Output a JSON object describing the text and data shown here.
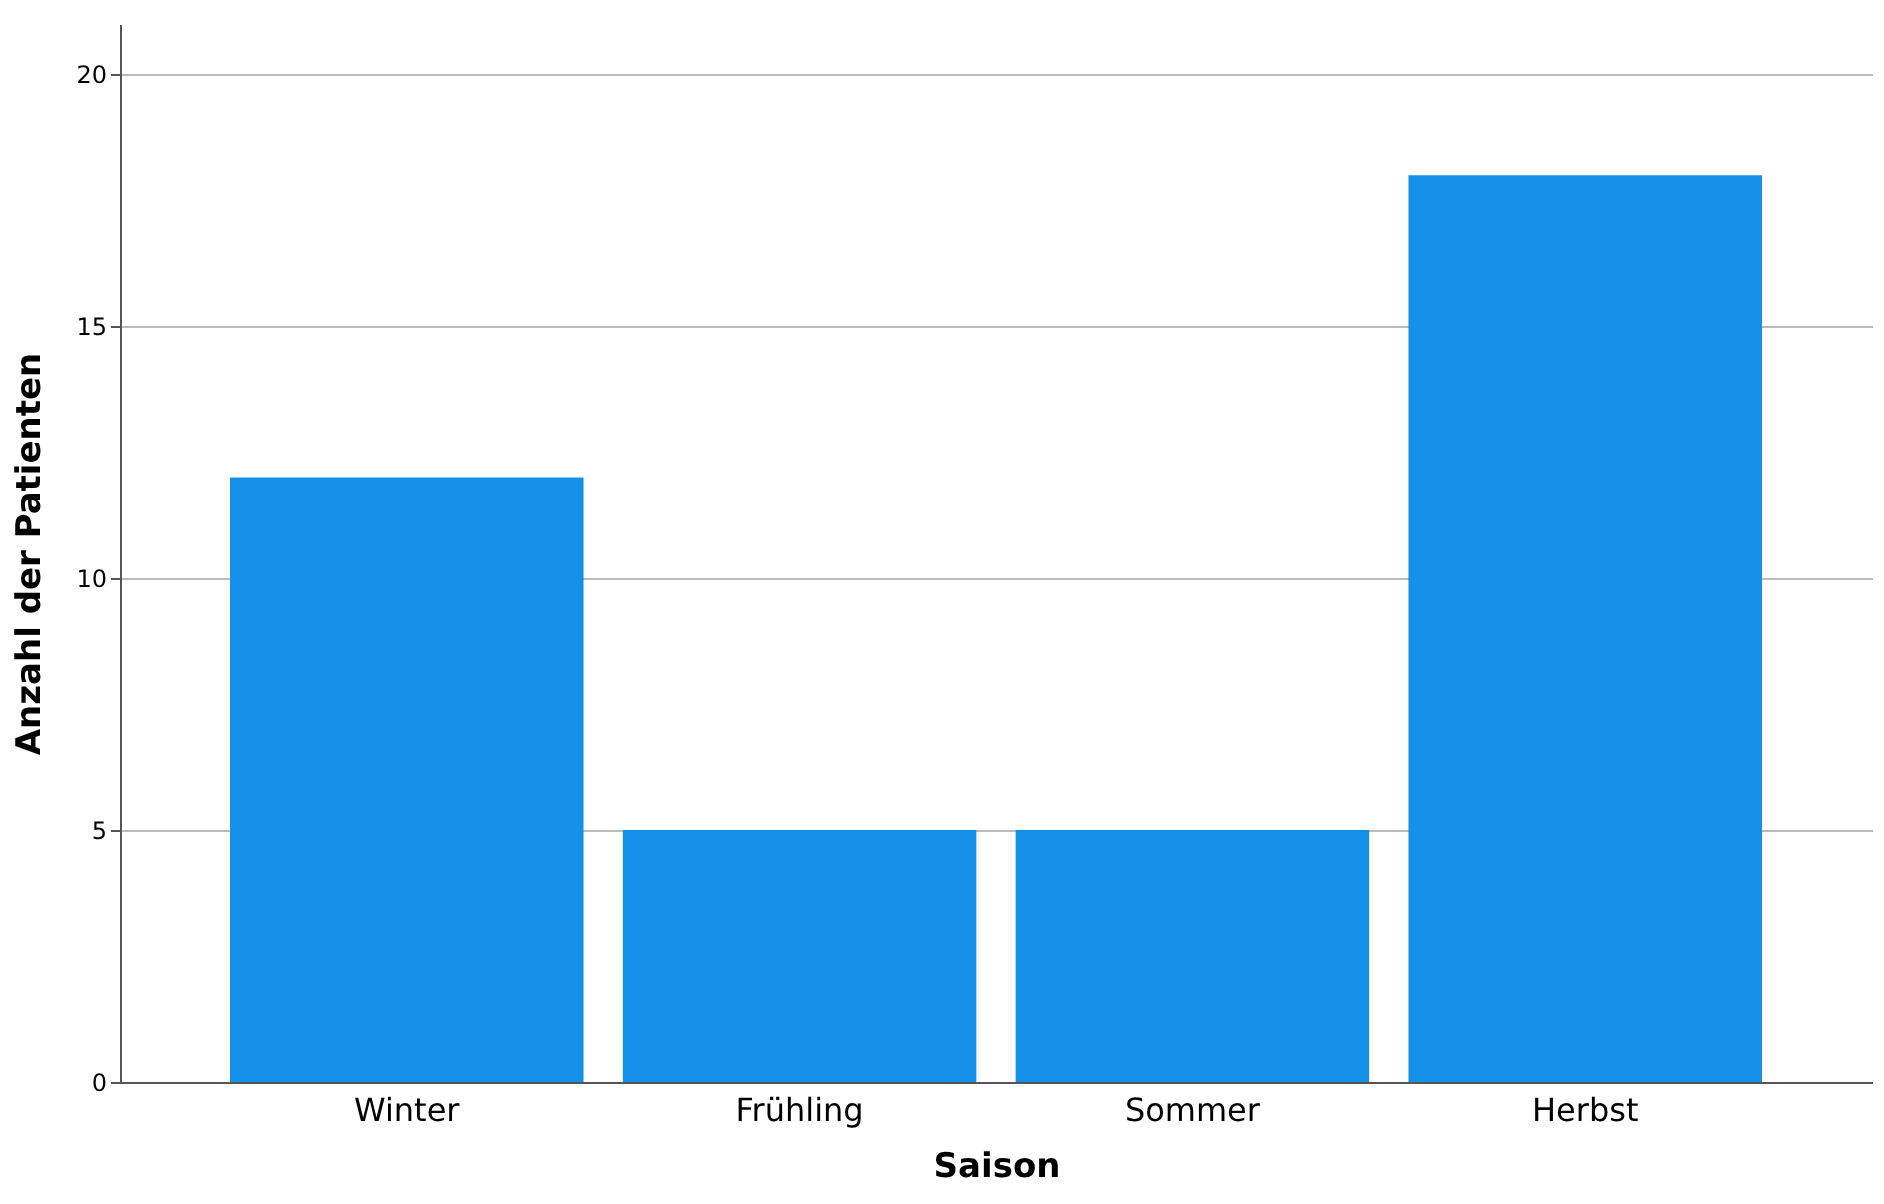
{
  "chart_data": {
    "type": "bar",
    "xlabel": "Saison",
    "ylabel": "Anzahl der Patienten",
    "categories": [
      "Winter",
      "Frühling",
      "Sommer",
      "Herbst"
    ],
    "values": [
      12,
      5,
      5,
      18
    ],
    "color": "#1490e8",
    "ylim": [
      0,
      21
    ],
    "yticks": [
      0,
      5,
      10,
      15,
      20
    ],
    "grid": "y"
  }
}
